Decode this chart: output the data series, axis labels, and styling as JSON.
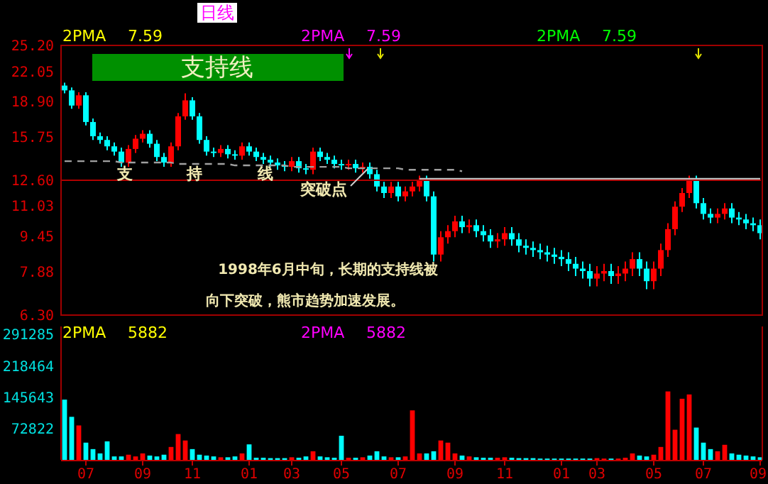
{
  "chart_data": [
    {
      "type": "candlestick",
      "log": true,
      "tick_labels": "y",
      "categories": [
        null,
        null,
        null,
        null,
        null,
        null,
        null,
        null,
        null,
        null,
        null,
        null,
        null,
        null,
        null,
        null,
        null,
        null,
        null,
        null,
        null,
        null,
        null,
        null,
        null,
        null,
        null,
        null,
        null,
        null,
        null,
        null,
        null,
        null,
        null,
        null,
        null,
        null,
        null,
        null,
        null,
        null,
        null,
        null,
        null,
        null,
        null,
        null,
        null,
        null,
        null,
        null,
        null,
        null,
        null,
        null,
        null,
        null,
        null,
        null,
        null,
        null,
        null,
        null,
        null,
        null,
        null,
        null,
        null,
        null,
        null,
        null,
        null,
        null,
        null,
        null,
        null,
        null,
        null,
        null,
        null,
        null,
        null,
        null,
        null,
        null,
        null,
        null,
        null,
        null,
        null,
        null,
        null,
        null,
        null,
        null,
        null,
        null,
        null
      ],
      "ylim": [
        6.3,
        25.2
      ],
      "yticks": [
        {
          "value": 25.2,
          "label": "25.20"
        },
        {
          "value": 22.05,
          "label": "22.05"
        },
        {
          "value": 18.9,
          "label": "18.90"
        },
        15.75,
        {
          "value": 12.6,
          "label": "12.60"
        },
        11.03,
        9.45,
        7.88,
        {
          "value": 6.3,
          "label": "6.30"
        }
      ],
      "ohlc": [
        [
          20.5,
          20.8,
          19.7,
          20.0
        ],
        [
          20.0,
          20.3,
          18.2,
          18.5
        ],
        [
          18.5,
          19.8,
          18.2,
          19.5
        ],
        [
          19.5,
          19.8,
          16.7,
          17.0
        ],
        [
          17.0,
          17.3,
          15.5,
          15.8
        ],
        [
          15.8,
          16.1,
          15.2,
          15.5
        ],
        [
          15.5,
          15.8,
          14.7,
          15.0
        ],
        [
          15.0,
          15.3,
          14.3,
          14.6
        ],
        [
          14.6,
          14.9,
          13.5,
          13.8
        ],
        [
          13.8,
          15.1,
          13.5,
          14.8
        ],
        [
          14.8,
          15.9,
          14.5,
          15.6
        ],
        [
          15.6,
          16.3,
          15.3,
          16.0
        ],
        [
          16.0,
          16.3,
          14.9,
          15.2
        ],
        [
          15.2,
          15.5,
          13.9,
          14.2
        ],
        [
          14.2,
          14.5,
          13.5,
          13.8
        ],
        [
          13.8,
          15.3,
          13.5,
          15.0
        ],
        [
          15.0,
          17.8,
          14.7,
          17.5
        ],
        [
          17.5,
          19.7,
          17.2,
          19.0
        ],
        [
          19.0,
          19.3,
          17.2,
          17.5
        ],
        [
          17.5,
          17.8,
          15.2,
          15.5
        ],
        [
          15.5,
          15.8,
          14.3,
          14.6
        ],
        [
          14.6,
          14.9,
          14.2,
          14.5
        ],
        [
          14.5,
          15.1,
          14.2,
          14.8
        ],
        [
          14.8,
          15.1,
          14.1,
          14.4
        ],
        [
          14.4,
          14.7,
          14.0,
          14.3
        ],
        [
          14.3,
          15.3,
          14.0,
          15.0
        ],
        [
          15.0,
          15.3,
          14.3,
          14.6
        ],
        [
          14.6,
          14.9,
          13.9,
          14.2
        ],
        [
          14.2,
          14.5,
          13.7,
          14.0
        ],
        [
          14.0,
          14.3,
          13.5,
          13.8
        ],
        [
          13.8,
          14.1,
          13.3,
          13.6
        ],
        [
          13.6,
          13.9,
          13.2,
          13.5
        ],
        [
          13.5,
          14.2,
          13.2,
          13.9
        ],
        [
          13.9,
          14.2,
          13.1,
          13.4
        ],
        [
          13.4,
          13.7,
          13.0,
          13.3
        ],
        [
          13.3,
          14.9,
          13.0,
          14.6
        ],
        [
          14.6,
          14.9,
          13.9,
          14.2
        ],
        [
          14.2,
          14.5,
          13.7,
          14.0
        ],
        [
          14.0,
          14.3,
          13.4,
          13.7
        ],
        [
          13.7,
          14.0,
          13.3,
          13.6
        ],
        [
          13.6,
          14.0,
          13.3,
          13.7
        ],
        [
          13.7,
          14.0,
          13.1,
          13.4
        ],
        [
          13.4,
          13.8,
          13.1,
          13.5
        ],
        [
          13.5,
          13.8,
          12.7,
          13.0
        ],
        [
          13.0,
          13.3,
          11.9,
          12.2
        ],
        [
          12.2,
          12.5,
          11.5,
          11.8
        ],
        [
          11.8,
          12.5,
          11.5,
          12.2
        ],
        [
          12.2,
          12.5,
          11.3,
          11.6
        ],
        [
          11.6,
          12.2,
          11.3,
          11.9
        ],
        [
          11.9,
          12.5,
          11.6,
          12.2
        ],
        [
          12.2,
          12.9,
          11.9,
          12.6
        ],
        [
          12.6,
          12.9,
          11.3,
          11.6
        ],
        [
          11.6,
          11.9,
          8.3,
          8.6
        ],
        [
          8.6,
          9.7,
          8.3,
          9.4
        ],
        [
          9.4,
          10.0,
          9.1,
          9.7
        ],
        [
          9.7,
          10.5,
          9.4,
          10.2
        ],
        [
          10.2,
          10.5,
          9.6,
          9.9
        ],
        [
          9.9,
          10.3,
          9.6,
          10.0
        ],
        [
          10.0,
          10.3,
          9.4,
          9.7
        ],
        [
          9.7,
          10.0,
          9.2,
          9.5
        ],
        [
          9.5,
          9.8,
          8.9,
          9.2
        ],
        [
          9.2,
          9.6,
          8.9,
          9.3
        ],
        [
          9.3,
          9.9,
          9.0,
          9.6
        ],
        [
          9.6,
          9.9,
          9.0,
          9.3
        ],
        [
          9.3,
          9.6,
          8.7,
          9.0
        ],
        [
          9.0,
          9.3,
          8.6,
          8.9
        ],
        [
          8.9,
          9.2,
          8.5,
          8.8
        ],
        [
          8.8,
          9.1,
          8.4,
          8.7
        ],
        [
          8.7,
          9.0,
          8.3,
          8.6
        ],
        [
          8.6,
          8.9,
          8.2,
          8.5
        ],
        [
          8.5,
          8.8,
          8.1,
          8.4
        ],
        [
          8.4,
          8.7,
          7.9,
          8.2
        ],
        [
          8.2,
          8.5,
          7.7,
          8.0
        ],
        [
          8.0,
          8.3,
          7.6,
          7.9
        ],
        [
          7.9,
          8.2,
          7.3,
          7.6
        ],
        [
          7.6,
          8.1,
          7.3,
          7.8
        ],
        [
          7.8,
          8.2,
          7.5,
          7.9
        ],
        [
          7.9,
          8.2,
          7.4,
          7.7
        ],
        [
          7.7,
          8.1,
          7.4,
          7.8
        ],
        [
          7.8,
          8.3,
          7.5,
          8.0
        ],
        [
          8.0,
          8.7,
          7.7,
          8.4
        ],
        [
          8.4,
          8.7,
          7.7,
          8.0
        ],
        [
          8.0,
          8.3,
          7.2,
          7.5
        ],
        [
          7.5,
          8.3,
          7.2,
          8.0
        ],
        [
          8.0,
          9.1,
          7.7,
          8.8
        ],
        [
          8.8,
          10.1,
          8.5,
          9.8
        ],
        [
          9.8,
          11.3,
          9.5,
          11.0
        ],
        [
          11.0,
          12.1,
          10.7,
          11.8
        ],
        [
          11.8,
          12.9,
          11.5,
          12.6
        ],
        [
          12.6,
          12.9,
          10.9,
          11.2
        ],
        [
          11.2,
          11.5,
          10.3,
          10.6
        ],
        [
          10.6,
          10.9,
          10.1,
          10.4
        ],
        [
          10.4,
          10.9,
          10.1,
          10.6
        ],
        [
          10.6,
          11.2,
          10.3,
          10.9
        ],
        [
          10.9,
          11.2,
          10.1,
          10.4
        ],
        [
          10.4,
          10.7,
          10.0,
          10.3
        ],
        [
          10.3,
          10.6,
          9.8,
          10.1
        ],
        [
          10.1,
          10.4,
          9.7,
          10.0
        ],
        [
          10.0,
          10.3,
          9.3,
          9.6
        ]
      ],
      "colors": [
        "#00ffff",
        "#00ffff",
        "#ff0000",
        "#00ffff",
        "#00ffff",
        "#00ffff",
        "#00ffff",
        "#00ffff",
        "#00ffff",
        "#ff0000",
        "#ff0000",
        "#ff0000",
        "#00ffff",
        "#00ffff",
        "#00ffff",
        "#ff0000",
        "#ff0000",
        "#ff0000",
        "#00ffff",
        "#00ffff",
        "#00ffff",
        "#00ffff",
        "#ff0000",
        "#00ffff",
        "#00ffff",
        "#ff0000",
        "#00ffff",
        "#00ffff",
        "#00ffff",
        "#00ffff",
        "#00ffff",
        "#00ffff",
        "#ff0000",
        "#00ffff",
        "#00ffff",
        "#ff0000",
        "#00ffff",
        "#00ffff",
        "#00ffff",
        "#00ffff",
        "#ff0000",
        "#00ffff",
        "#ff0000",
        "#00ffff",
        "#00ffff",
        "#00ffff",
        "#ff0000",
        "#00ffff",
        "#ff0000",
        "#ff0000",
        "#ff0000",
        "#00ffff",
        "#00ffff",
        "#ff0000",
        "#ff0000",
        "#ff0000",
        "#00ffff",
        "#ff0000",
        "#00ffff",
        "#00ffff",
        "#00ffff",
        "#ff0000",
        "#ff0000",
        "#00ffff",
        "#00ffff",
        "#00ffff",
        "#00ffff",
        "#00ffff",
        "#00ffff",
        "#00ffff",
        "#00ffff",
        "#00ffff",
        "#00ffff",
        "#00ffff",
        "#00ffff",
        "#ff0000",
        "#ff0000",
        "#00ffff",
        "#ff0000",
        "#ff0000",
        "#ff0000",
        "#00ffff",
        "#00ffff",
        "#ff0000",
        "#ff0000",
        "#ff0000",
        "#ff0000",
        "#ff0000",
        "#ff0000",
        "#00ffff",
        "#00ffff",
        "#00ffff",
        "#ff0000",
        "#ff0000",
        "#00ffff",
        "#00ffff",
        "#00ffff",
        "#00ffff",
        "#00ffff"
      ],
      "series": [
        {
          "type": "line",
          "color": "#a0a0a0",
          "line_style": "dashed",
          "values": [
            13.9,
            13.9,
            13.9,
            13.9,
            13.9,
            13.9,
            13.9,
            13.9,
            13.8,
            13.8,
            13.8,
            13.8,
            13.8,
            13.8,
            13.8,
            13.8,
            13.7,
            13.7,
            13.7,
            13.7,
            13.7,
            13.7,
            13.7,
            13.7,
            13.6,
            13.6,
            13.6,
            13.6,
            13.6,
            13.6,
            13.6,
            13.6,
            13.5,
            13.5,
            13.5,
            13.5,
            13.5,
            13.5,
            13.5,
            13.5,
            13.4,
            13.4,
            13.4,
            13.4,
            13.4,
            13.4,
            13.4,
            13.4,
            13.3,
            13.3,
            13.3,
            13.3,
            13.3,
            13.3,
            13.3,
            13.3,
            13.2,
            null,
            null,
            null,
            null,
            null,
            null,
            null,
            null,
            null,
            null,
            null,
            null,
            null,
            null,
            null,
            null,
            null,
            null,
            null,
            null,
            null,
            null,
            null,
            null,
            null,
            null,
            null,
            null,
            null,
            null,
            null,
            null,
            null,
            null,
            null,
            null,
            null,
            null,
            null,
            null,
            null,
            null
          ]
        },
        {
          "type": "line",
          "color": "#c0c0c0",
          "line_style": "solid",
          "values": [
            null,
            null,
            null,
            null,
            null,
            null,
            null,
            null,
            null,
            null,
            null,
            null,
            null,
            null,
            null,
            null,
            null,
            null,
            null,
            null,
            null,
            null,
            null,
            null,
            null,
            null,
            null,
            null,
            null,
            null,
            null,
            null,
            null,
            null,
            null,
            null,
            null,
            null,
            null,
            null,
            null,
            null,
            null,
            null,
            null,
            null,
            null,
            null,
            null,
            null,
            12.7,
            12.7,
            12.7,
            12.7,
            12.7,
            12.7,
            12.7,
            12.7,
            12.7,
            12.7,
            12.7,
            12.7,
            12.7,
            12.7,
            12.7,
            12.7,
            12.7,
            12.7,
            12.7,
            12.7,
            12.7,
            12.7,
            12.7,
            12.7,
            12.7,
            12.7,
            12.7,
            12.7,
            12.7,
            12.7,
            12.7,
            12.7,
            12.7,
            12.7,
            12.7,
            12.7,
            12.7,
            12.7,
            12.7,
            12.7,
            12.7,
            12.7,
            12.7,
            12.7,
            12.7,
            12.7,
            12.7,
            12.7,
            12.7
          ]
        }
      ],
      "ref_lines": [
        {
          "axis": "y",
          "value": 12.6,
          "color": "#b00000"
        }
      ],
      "annotations": [
        "日线",
        "2PMA",
        "7.59",
        "2PMA",
        "7.59",
        "2PMA",
        "7.59",
        "支持线",
        "支",
        "持",
        "线",
        "突破点",
        "1998年6月中旬，长期的支持线被",
        "向下突破，熊市趋势加速发展。"
      ]
    },
    {
      "type": "bar",
      "categories": [
        null,
        null,
        null,
        "07",
        null,
        null,
        null,
        null,
        null,
        null,
        null,
        "09",
        null,
        null,
        null,
        null,
        null,
        null,
        "11",
        null,
        null,
        null,
        null,
        null,
        null,
        null,
        "01",
        null,
        null,
        null,
        null,
        null,
        "03",
        null,
        null,
        null,
        null,
        null,
        null,
        "05",
        null,
        null,
        null,
        null,
        null,
        null,
        null,
        "07",
        null,
        null,
        null,
        null,
        null,
        null,
        null,
        "09",
        null,
        null,
        null,
        null,
        null,
        null,
        "11",
        null,
        null,
        null,
        null,
        null,
        null,
        null,
        "01",
        null,
        null,
        null,
        null,
        "03",
        null,
        null,
        null,
        null,
        null,
        null,
        null,
        "05",
        null,
        null,
        null,
        null,
        null,
        null,
        "07",
        null,
        null,
        null,
        null,
        null,
        null,
        null,
        "09"
      ],
      "ylim": [
        0,
        310000
      ],
      "yticks": [
        72822,
        145643,
        218464,
        291285
      ],
      "values": [
        140000,
        100000,
        80000,
        40000,
        25000,
        15000,
        43000,
        8000,
        8000,
        12000,
        8000,
        15000,
        10000,
        8000,
        12000,
        30000,
        60000,
        45000,
        25000,
        12000,
        10000,
        8000,
        6000,
        6000,
        8000,
        15000,
        36000,
        5000,
        5000,
        4000,
        4000,
        4000,
        6000,
        5000,
        8000,
        20000,
        8000,
        6000,
        5000,
        56000,
        5000,
        5000,
        6000,
        10000,
        20000,
        8000,
        6000,
        6000,
        8000,
        115000,
        15000,
        15000,
        20000,
        45000,
        40000,
        15000,
        10000,
        8000,
        6000,
        5000,
        5000,
        5000,
        6000,
        5000,
        4000,
        4000,
        4000,
        3000,
        3000,
        3000,
        3000,
        3000,
        3000,
        3000,
        3000,
        4000,
        3000,
        3000,
        3000,
        5000,
        15000,
        10000,
        8000,
        12000,
        30000,
        159000,
        70000,
        142000,
        152000,
        75000,
        40000,
        25000,
        20000,
        35000,
        15000,
        12000,
        10000,
        8000,
        6000
      ],
      "colors": [
        "#00ffff",
        "#00ffff",
        "#ff0000",
        "#00ffff",
        "#00ffff",
        "#00ffff",
        "#00ffff",
        "#00ffff",
        "#00ffff",
        "#ff0000",
        "#ff0000",
        "#ff0000",
        "#00ffff",
        "#00ffff",
        "#00ffff",
        "#ff0000",
        "#ff0000",
        "#ff0000",
        "#00ffff",
        "#00ffff",
        "#00ffff",
        "#00ffff",
        "#ff0000",
        "#00ffff",
        "#00ffff",
        "#ff0000",
        "#00ffff",
        "#00ffff",
        "#00ffff",
        "#00ffff",
        "#00ffff",
        "#00ffff",
        "#ff0000",
        "#00ffff",
        "#00ffff",
        "#ff0000",
        "#00ffff",
        "#00ffff",
        "#00ffff",
        "#00ffff",
        "#ff0000",
        "#00ffff",
        "#ff0000",
        "#00ffff",
        "#00ffff",
        "#00ffff",
        "#ff0000",
        "#00ffff",
        "#ff0000",
        "#ff0000",
        "#ff0000",
        "#00ffff",
        "#00ffff",
        "#ff0000",
        "#ff0000",
        "#ff0000",
        "#00ffff",
        "#ff0000",
        "#00ffff",
        "#00ffff",
        "#00ffff",
        "#ff0000",
        "#ff0000",
        "#00ffff",
        "#00ffff",
        "#00ffff",
        "#00ffff",
        "#00ffff",
        "#00ffff",
        "#00ffff",
        "#00ffff",
        "#00ffff",
        "#00ffff",
        "#00ffff",
        "#00ffff",
        "#ff0000",
        "#ff0000",
        "#00ffff",
        "#ff0000",
        "#ff0000",
        "#ff0000",
        "#00ffff",
        "#00ffff",
        "#ff0000",
        "#ff0000",
        "#ff0000",
        "#ff0000",
        "#ff0000",
        "#ff0000",
        "#00ffff",
        "#00ffff",
        "#00ffff",
        "#ff0000",
        "#ff0000",
        "#00ffff",
        "#00ffff",
        "#00ffff",
        "#00ffff",
        "#00ffff"
      ],
      "annotations": [
        "2PMA",
        "5882",
        "2PMA",
        "5882"
      ]
    }
  ]
}
